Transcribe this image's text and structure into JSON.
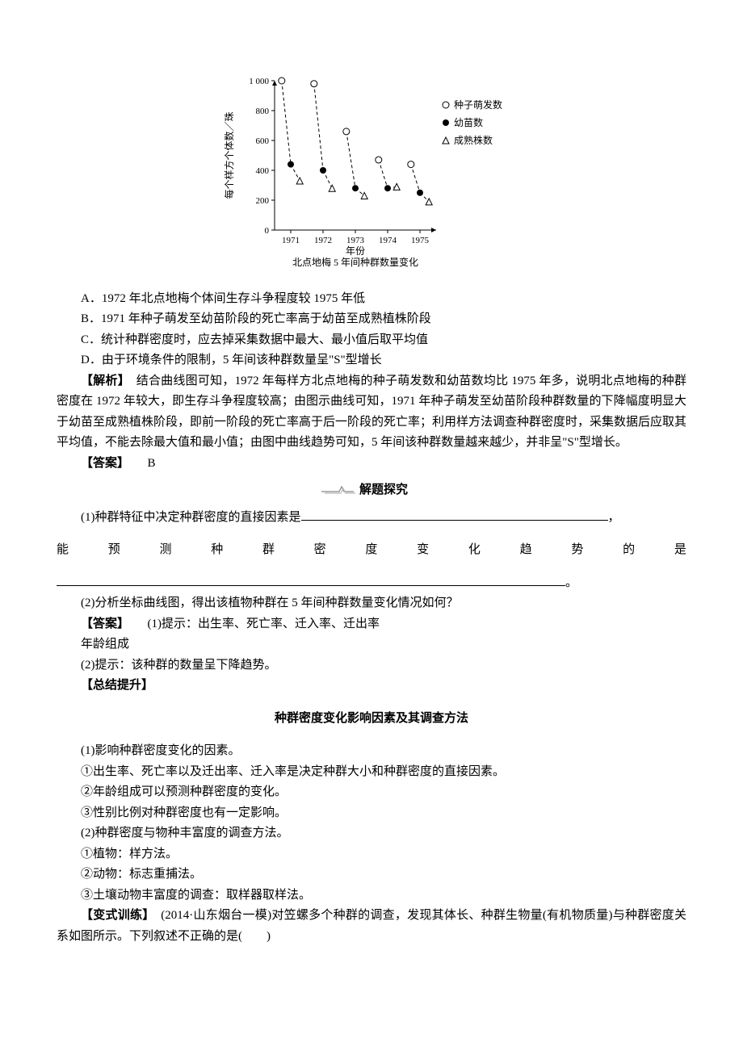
{
  "chart": {
    "y_label": "每个样方个体数／珠",
    "x_label": "年份",
    "caption": "北点地梅 5 年间种群数量变化",
    "ylim": [
      0,
      1000
    ],
    "yticks": [
      0,
      200,
      400,
      600,
      800,
      1000
    ],
    "xticks": [
      "1971",
      "1972",
      "1973",
      "1974",
      "1975"
    ],
    "legend": {
      "seed": "种子萌发数",
      "seedling": "幼苗数",
      "mature": "成熟株数"
    },
    "legend_markers": {
      "seed": "open-circle",
      "seedling": "filled-circle",
      "mature": "open-triangle"
    },
    "series": {
      "seed": [
        1000,
        980,
        660,
        470,
        440
      ],
      "seedling": [
        440,
        400,
        280,
        280,
        250
      ],
      "mature": [
        330,
        280,
        230,
        290,
        190
      ]
    },
    "colors": {
      "axis": "#000000",
      "lines": "#000000",
      "background": "#ffffff",
      "text": "#000000"
    },
    "font": {
      "axis_pt": 12,
      "legend_pt": 12,
      "caption_pt": 12
    },
    "line_width": 1,
    "marker_size": 4,
    "dash_pattern": "4 3"
  },
  "options": {
    "a": "A．1972 年北点地梅个体间生存斗争程度较 1975 年低",
    "b": "B．1971 年种子萌发至幼苗阶段的死亡率高于幼苗至成熟植株阶段",
    "c": "C．统计种群密度时，应去掉采集数据中最大、最小值后取平均值",
    "d": "D．由于环境条件的限制，5 年间该种群数量呈\"S\"型增长"
  },
  "analysis": {
    "label": "【解析】",
    "text": "　结合曲线图可知，1972 年每样方北点地梅的种子萌发数和幼苗数均比 1975 年多，说明北点地梅的种群密度在 1972 年较大，即生存斗争程度较高；由图示曲线可知，1971 年种子萌发至幼苗阶段种群数量的下降幅度明显大于幼苗至成熟植株阶段，即前一阶段的死亡率高于后一阶段的死亡率；利用样方法调查种群密度时，采集数据后应取其平均值，不能去除最大值和最小值；由图中曲线趋势可知，5 年间该种群数量越来越少，并非呈\"S\"型增长。"
  },
  "answer1": {
    "label": "【答案】",
    "value": "B"
  },
  "decorator1": "解题探究",
  "q1": {
    "prefix": "(1)种群特征中决定种群密度的直接因素是",
    "spread": "能预测种群密度变化趋势的是"
  },
  "q2": "(2)分析坐标曲线图，得出该植物种群在 5 年间种群数量变化情况如何？",
  "answers": {
    "label": "【答案】",
    "a1a": "(1)提示：出生率、死亡率、迁入率、迁出率",
    "a1b": "年龄组成",
    "a2": "(2)提示：该种群的数量呈下降趋势。"
  },
  "summary": {
    "label": "【总结提升】",
    "title": "种群密度变化影响因素及其调查方法",
    "p1": "(1)影响种群密度变化的因素。",
    "p1a": "①出生率、死亡率以及迁出率、迁入率是决定种群大小和种群密度的直接因素。",
    "p1b": "②年龄组成可以预测种群密度的变化。",
    "p1c": "③性别比例对种群密度也有一定影响。",
    "p2": "(2)种群密度与物种丰富度的调查方法。",
    "p2a": "①植物：样方法。",
    "p2b": "②动物：标志重捕法。",
    "p2c": "③土壤动物丰富度的调查：取样器取样法。"
  },
  "variation": {
    "label": "【变式训练】",
    "text": "　(2014·山东烟台一模)对笠螺多个种群的调查，发现其体长、种群生物量(有机物质量)与种群密度关系如图所示。下列叙述不正确的是(　　)"
  }
}
